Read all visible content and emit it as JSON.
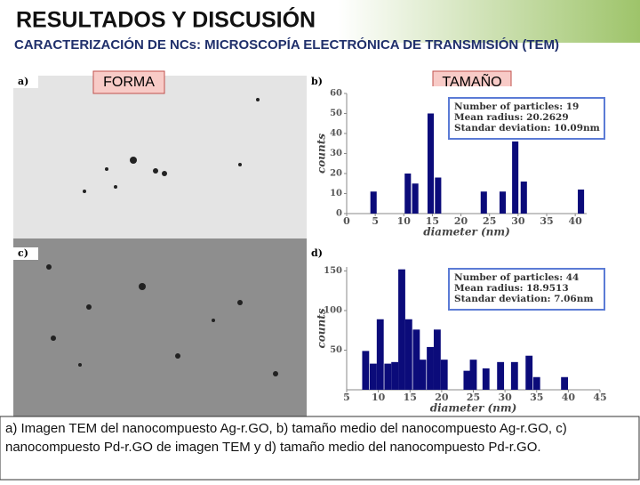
{
  "title": "RESULTADOS Y DISCUSIÓN",
  "subtitle": "CARACTERIZACIÓN DE NCs: MICROSCOPÍA ELECTRÓNICA DE TRANSMISIÓN (TEM)",
  "tags": [
    "FORMA",
    "TAMAÑO"
  ],
  "panels": [
    "a)",
    "b)",
    "c)",
    "d)"
  ],
  "caption": "a) Imagen TEM del nanocompuesto Ag-r.GO, b) tamaño medio del nanocompuesto Ag-r.GO, c) nanocompuesto Pd-r.GO de imagen TEM y d) tamaño medio del nanocompuesto Pd-r.GO.",
  "chart_data": [
    {
      "type": "bar",
      "x_label": "diameter (nm)",
      "y_label": "counts",
      "color": "#0b0b7a",
      "stats": [
        "Number of particles: 19",
        "Mean radius: 20.2629",
        "Standar deviation: 10.09nm"
      ],
      "x": [
        4.7,
        10.7,
        12,
        14.7,
        16,
        24,
        27.3,
        29.5,
        31,
        41
      ],
      "values": [
        11,
        20,
        15,
        50,
        18,
        11,
        11,
        36,
        16,
        12
      ],
      "xlim": [
        0,
        42
      ],
      "xticks": [
        0,
        5,
        10,
        15,
        20,
        25,
        30,
        35,
        40
      ],
      "ylim": [
        0,
        60
      ],
      "yticks": [
        0,
        10,
        20,
        30,
        40,
        50,
        60
      ]
    },
    {
      "type": "bar",
      "x_label": "diameter (nm)",
      "y_label": "counts",
      "color": "#0b0b7a",
      "stats": [
        "Number of particles: 44",
        "Mean radius: 18.9513",
        "Standar deviation: 7.06nm"
      ],
      "x": [
        8,
        9.2,
        10.3,
        11.5,
        12.6,
        13.7,
        14.8,
        16,
        17,
        18.2,
        19.3,
        20.4,
        24,
        25,
        27,
        29.3,
        31.5,
        33.8,
        35,
        39.4
      ],
      "values": [
        49,
        33,
        89,
        33,
        35,
        152,
        89,
        76,
        38,
        54,
        76,
        38,
        24,
        38,
        27,
        35,
        35,
        43,
        16,
        16
      ],
      "xlim": [
        5,
        45
      ],
      "xticks": [
        5,
        10,
        15,
        20,
        25,
        30,
        35,
        40,
        45
      ],
      "ylim": [
        0,
        155
      ],
      "yticks": [
        50,
        100,
        150
      ]
    }
  ]
}
